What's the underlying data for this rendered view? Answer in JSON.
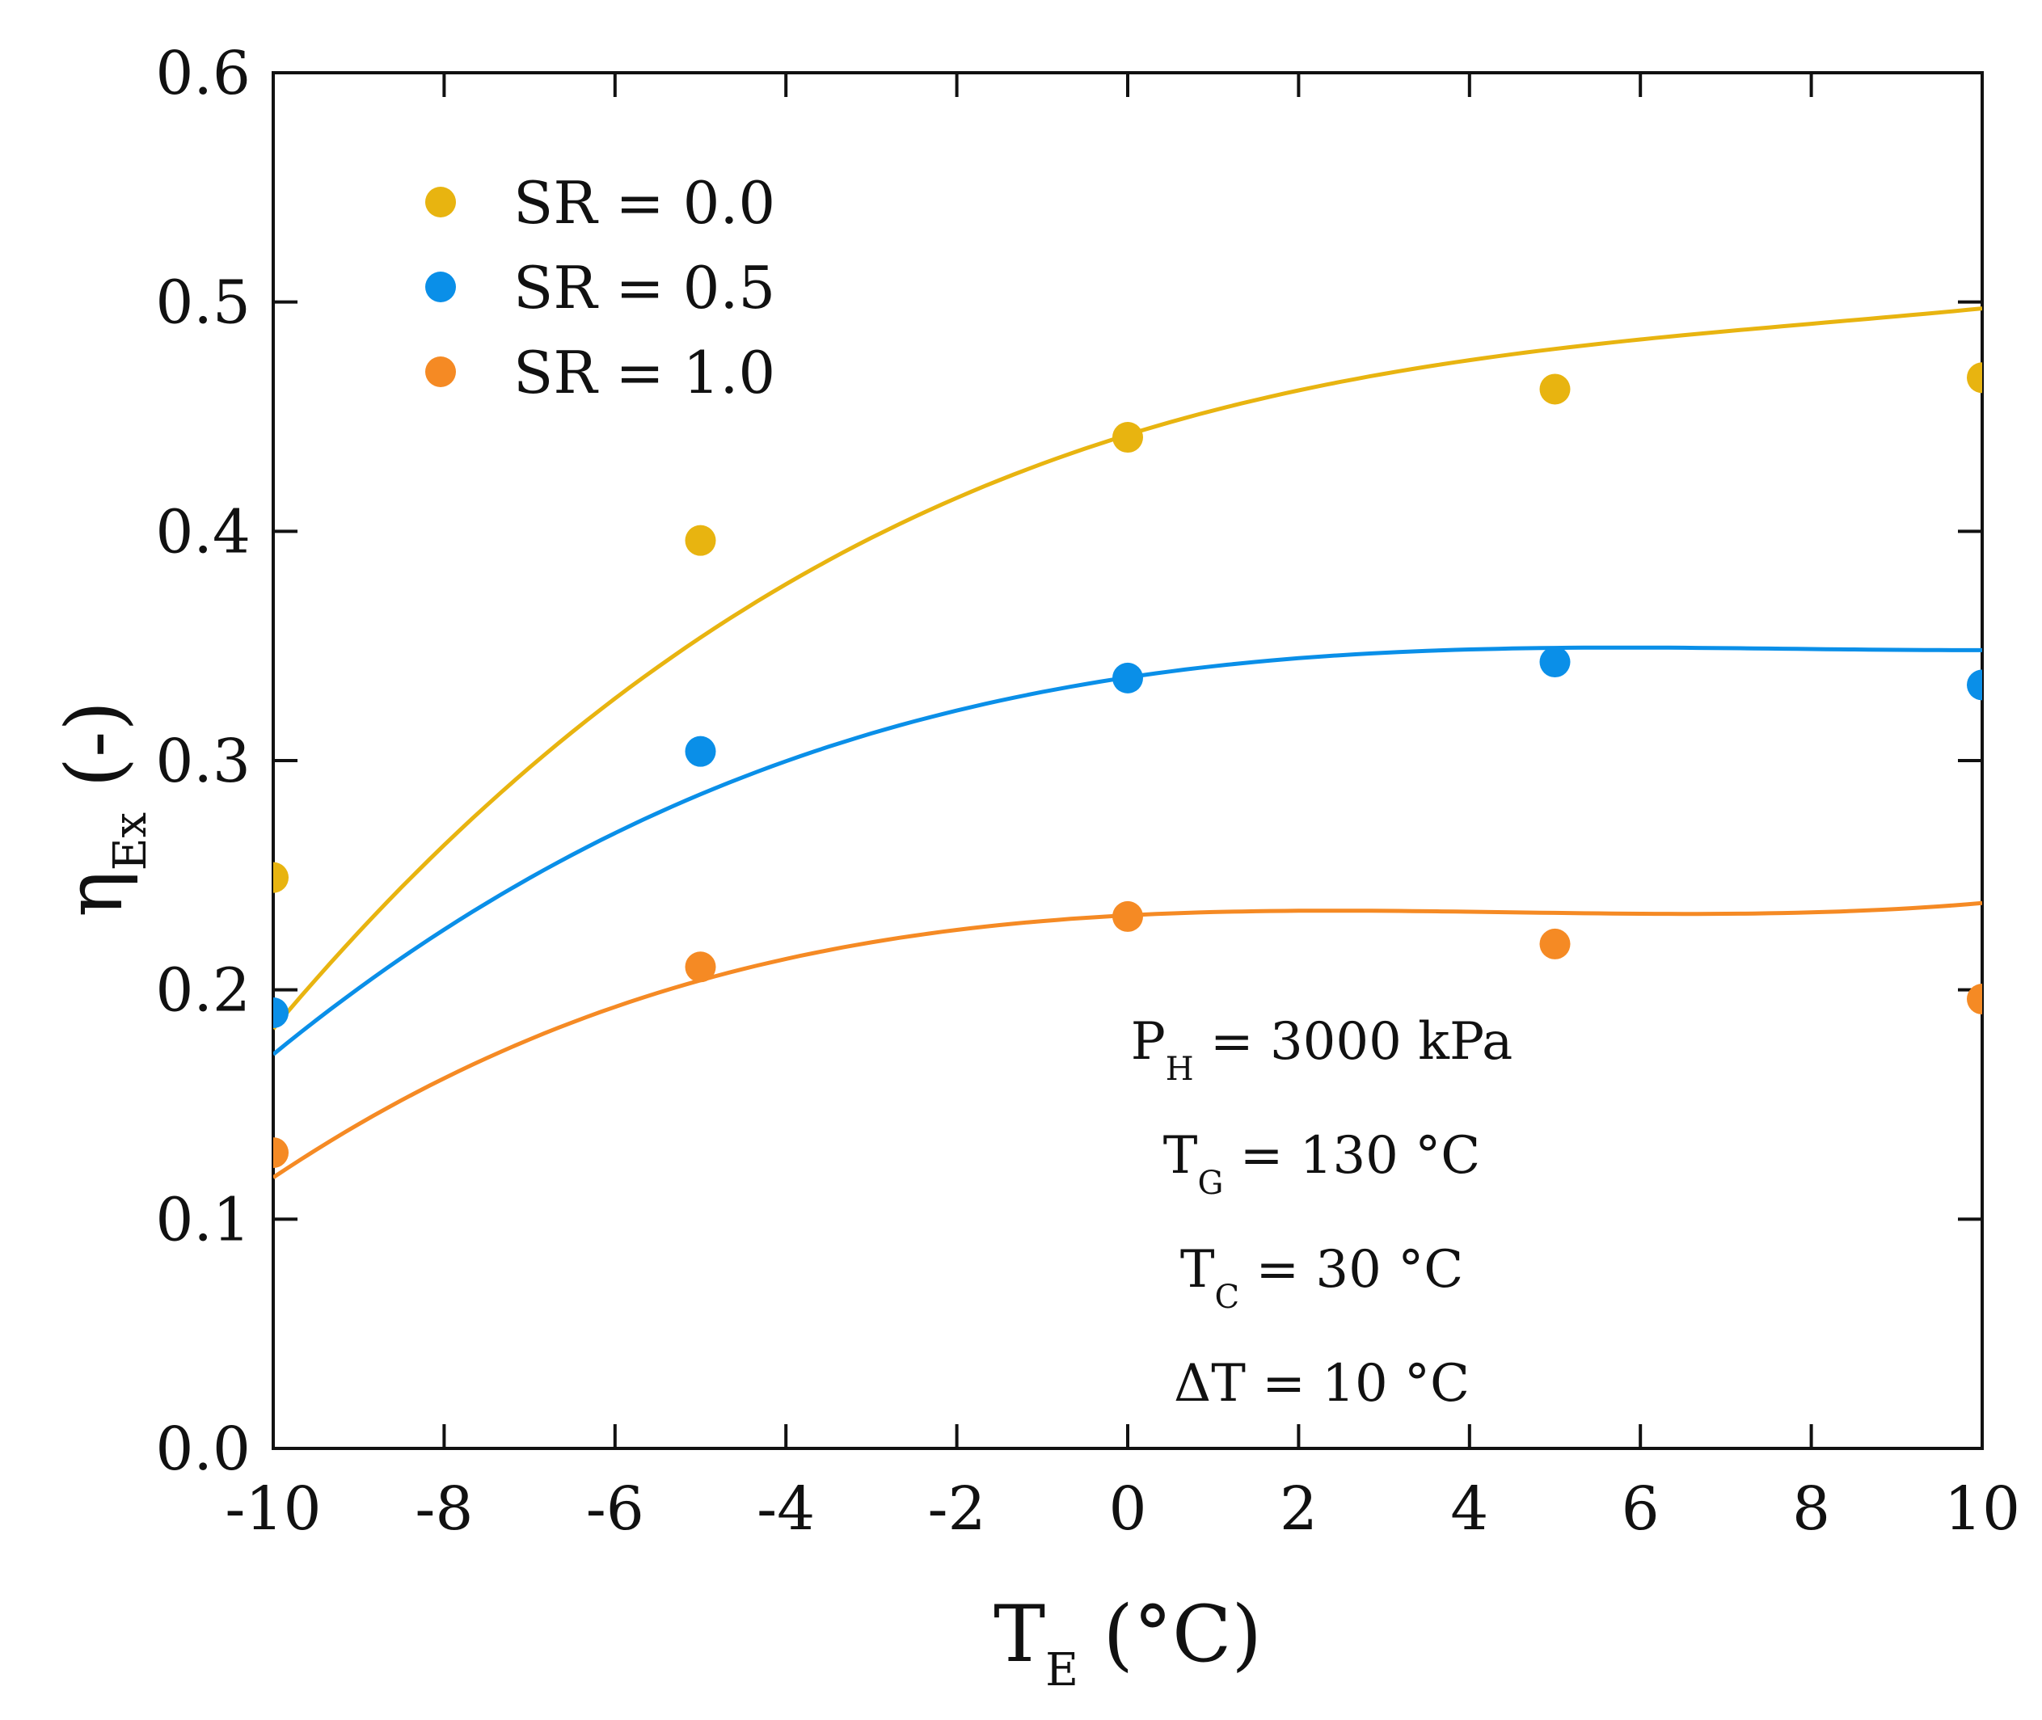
{
  "chart_data": {
    "type": "line",
    "title": "",
    "xlabel": {
      "main": "T",
      "sub": "E",
      "unit": " (°C)"
    },
    "ylabel": {
      "main": "η",
      "sub": "Ex",
      "unit": " (-)"
    },
    "xlim": [
      -10,
      10
    ],
    "ylim": [
      0.0,
      0.6
    ],
    "xticks": [
      -10,
      -8,
      -6,
      -4,
      -2,
      0,
      2,
      4,
      6,
      8,
      10
    ],
    "xtick_labels": [
      "-10",
      "-8",
      "-6",
      "-4",
      "-2",
      "0",
      "2",
      "4",
      "6",
      "8",
      "10"
    ],
    "yticks": [
      0.0,
      0.1,
      0.2,
      0.3,
      0.4,
      0.5,
      0.6
    ],
    "ytick_labels": [
      "0.0",
      "0.1",
      "0.2",
      "0.3",
      "0.4",
      "0.5",
      "0.6"
    ],
    "grid": false,
    "legend_position": "top-left",
    "series": [
      {
        "name": "SR = 0.0",
        "color": "#E8B410",
        "x": [
          -10,
          -5,
          0,
          5,
          10
        ],
        "values": [
          0.249,
          0.396,
          0.441,
          0.462,
          0.467
        ],
        "fit": [
          0.4421,
          0.01155,
          -0.00102,
          4.16e-05
        ]
      },
      {
        "name": "SR = 0.5",
        "color": "#0A8FE8",
        "x": [
          -10,
          -5,
          0,
          5,
          10
        ],
        "values": [
          0.19,
          0.304,
          0.336,
          0.343,
          0.333
        ],
        "fit": [
          0.3363,
          0.005575,
          -0.000763,
          3.24e-05
        ]
      },
      {
        "name": "SR = 1.0",
        "color": "#F58A24",
        "x": [
          -10,
          -5,
          0,
          5,
          10
        ],
        "values": [
          0.129,
          0.21,
          0.232,
          0.22,
          0.196
        ],
        "fit": [
          0.2325,
          0.001925,
          -0.000545,
          4.06e-05
        ]
      }
    ],
    "annotations": [
      {
        "main": "P",
        "sub": "H",
        "rest": " = 3000 kPa"
      },
      {
        "main": "T",
        "sub": "G",
        "rest": " = 130 °C"
      },
      {
        "main": "T",
        "sub": "C",
        "rest": " = 30 °C"
      },
      {
        "main": "ΔT = 10 °C",
        "sub": "",
        "rest": ""
      }
    ]
  }
}
